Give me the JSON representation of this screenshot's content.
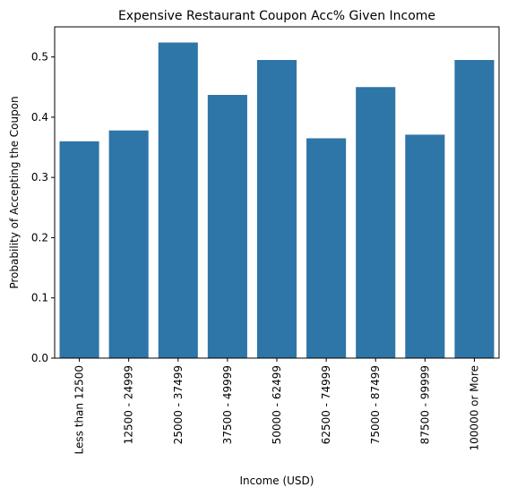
{
  "chart_data": {
    "type": "bar",
    "title": "Expensive Restaurant Coupon Acc% Given Income",
    "xlabel": "Income (USD)",
    "ylabel": "Probability of Accepting the Coupon",
    "categories": [
      "Less than 12500",
      "12500 - 24999",
      "25000 - 37499",
      "37500 - 49999",
      "50000 - 62499",
      "62500 - 74999",
      "75000 - 87499",
      "87500 - 99999",
      "100000 or More"
    ],
    "values": [
      0.36,
      0.378,
      0.524,
      0.437,
      0.495,
      0.365,
      0.45,
      0.371,
      0.495
    ],
    "ylim": [
      0,
      0.55
    ],
    "yticks": [
      "0.0",
      "0.1",
      "0.2",
      "0.3",
      "0.4",
      "0.5"
    ],
    "bar_color": "#2e75a8",
    "grid": false,
    "legend": "none"
  }
}
